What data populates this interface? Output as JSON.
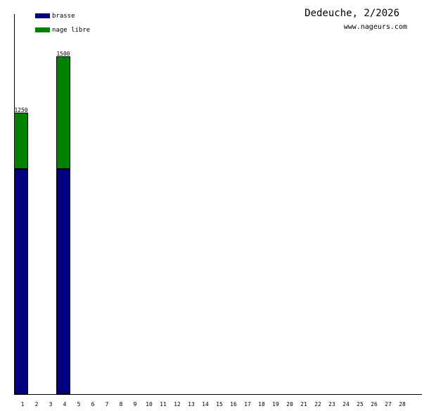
{
  "header": {
    "title": "Dedeuche, 2/2026",
    "subtitle": "www.nageurs.com"
  },
  "colors": {
    "brasse": "#000080",
    "nage_libre": "#008000",
    "axis": "#000000"
  },
  "chart_data": {
    "type": "bar",
    "stacked": true,
    "title": "Dedeuche, 2/2026",
    "subtitle": "www.nageurs.com",
    "xlabel": "",
    "ylabel": "",
    "categories": [
      "1",
      "2",
      "3",
      "4",
      "5",
      "6",
      "7",
      "8",
      "9",
      "10",
      "11",
      "12",
      "13",
      "14",
      "15",
      "16",
      "17",
      "18",
      "19",
      "20",
      "21",
      "22",
      "23",
      "24",
      "25",
      "26",
      "27",
      "28"
    ],
    "series": [
      {
        "name": "brasse",
        "color": "#000080",
        "values": [
          1000,
          0,
          0,
          1000,
          0,
          0,
          0,
          0,
          0,
          0,
          0,
          0,
          0,
          0,
          0,
          0,
          0,
          0,
          0,
          0,
          0,
          0,
          0,
          0,
          0,
          0,
          0,
          0
        ]
      },
      {
        "name": "nage libre",
        "color": "#008000",
        "values": [
          250,
          0,
          0,
          500,
          0,
          0,
          0,
          0,
          0,
          0,
          0,
          0,
          0,
          0,
          0,
          0,
          0,
          0,
          0,
          0,
          0,
          0,
          0,
          0,
          0,
          0,
          0,
          0
        ]
      }
    ],
    "totals": [
      "1250",
      "",
      "",
      "1500",
      "",
      "",
      "",
      "",
      "",
      "",
      "",
      "",
      "",
      "",
      "",
      "",
      "",
      "",
      "",
      "",
      "",
      "",
      "",
      "",
      "",
      "",
      "",
      ""
    ],
    "ylim": [
      0,
      1687.5
    ],
    "grid": false,
    "legend": "top-left"
  }
}
